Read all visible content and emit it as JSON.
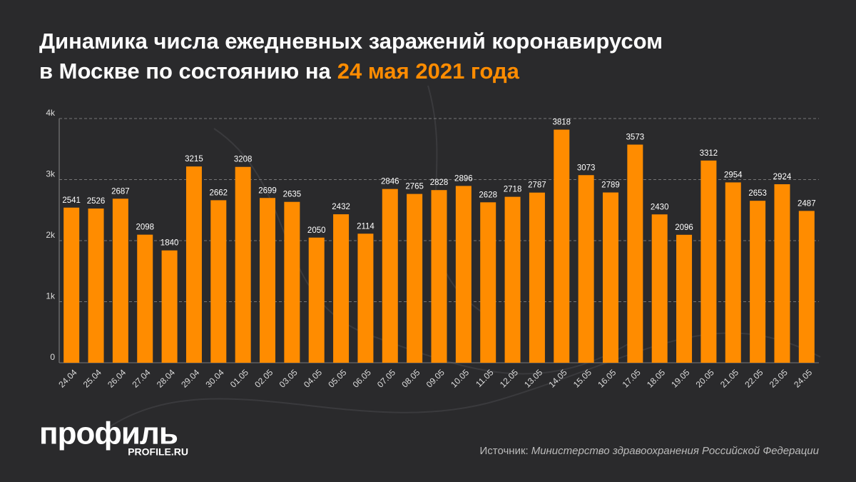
{
  "chart_data": {
    "type": "bar",
    "title_lines": [
      "Динамика числа ежедневных заражений коронавирусом",
      "в Москве по состоянию на"
    ],
    "title_date": "24 мая 2021 года",
    "categories": [
      "24.04",
      "25.04",
      "26.04",
      "27.04",
      "28.04",
      "29.04",
      "30.04",
      "01.05",
      "02.05",
      "03.05",
      "04.05",
      "05.05",
      "06.05",
      "07.05",
      "08.05",
      "09.05",
      "10.05",
      "11.05",
      "12.05",
      "13.05",
      "14.05",
      "15.05",
      "16.05",
      "17.05",
      "18.05",
      "19.05",
      "20.05",
      "21.05",
      "22.05",
      "23.05",
      "24.05"
    ],
    "values": [
      2541,
      2526,
      2687,
      2098,
      1840,
      3215,
      2662,
      3208,
      2699,
      2635,
      2050,
      2432,
      2114,
      2846,
      2765,
      2828,
      2896,
      2628,
      2718,
      2787,
      3818,
      3073,
      2789,
      3573,
      2430,
      2096,
      3312,
      2954,
      2653,
      2924,
      2487
    ],
    "color": "#ff8c00",
    "ylim": [
      0,
      4000
    ],
    "yticks": [
      0,
      {
        "value": 1000,
        "label": "1k"
      },
      {
        "value": 2000,
        "label": "2k"
      },
      {
        "value": 3000,
        "label": "3k"
      },
      {
        "value": 4000,
        "label": "4k"
      }
    ],
    "grid": true
  },
  "logo": {
    "name": "профиль",
    "site": "PROFILE.RU"
  },
  "source_label": "Источник:",
  "source": "Министерство здравоохранения Российской Федерации"
}
